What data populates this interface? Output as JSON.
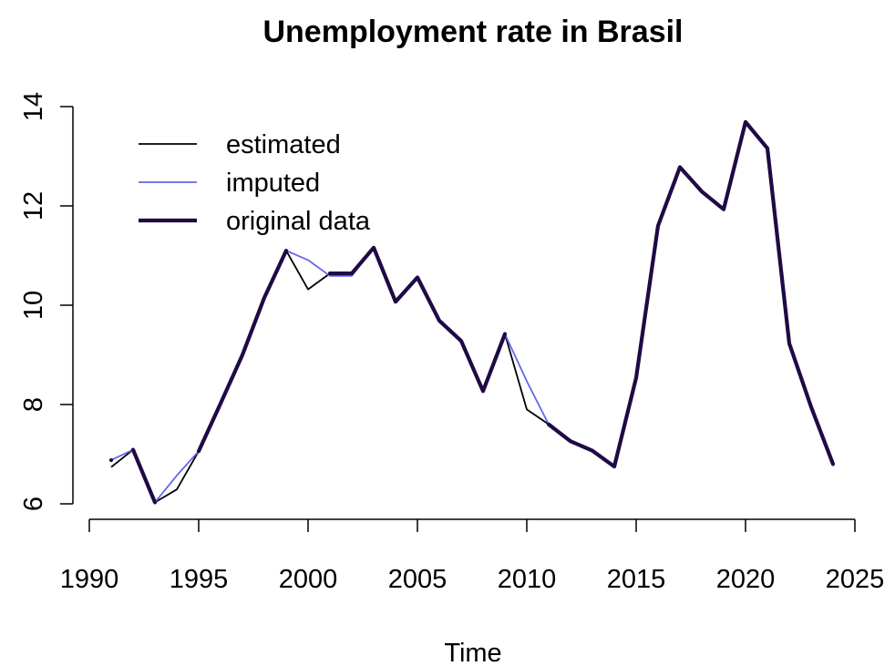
{
  "chart_data": {
    "type": "line",
    "title": "Unemployment rate in Brasil",
    "xlabel": "Time",
    "ylabel": "",
    "xlim": [
      1990,
      2025
    ],
    "ylim": [
      6,
      14
    ],
    "x_ticks": [
      1990,
      1995,
      2000,
      2005,
      2010,
      2015,
      2020,
      2025
    ],
    "y_ticks": [
      6,
      8,
      10,
      12,
      14
    ],
    "legend_position": "top-left",
    "grid": false,
    "series": [
      {
        "name": "estimated",
        "color": "#000000",
        "x": [
          1991,
          1992,
          1993,
          1994,
          1995,
          1996,
          1997,
          1998,
          1999,
          2000,
          2001,
          2002,
          2003,
          2004,
          2005,
          2006,
          2007,
          2008,
          2009,
          2010,
          2011,
          2012,
          2013,
          2014,
          2015,
          2016,
          2017,
          2018,
          2019,
          2020,
          2021,
          2022,
          2023,
          2024
        ],
        "values": [
          6.74,
          7.09,
          6.03,
          6.29,
          7.06,
          8.02,
          9.0,
          10.15,
          11.1,
          10.32,
          10.64,
          10.64,
          11.16,
          10.07,
          10.56,
          9.69,
          9.28,
          8.27,
          9.42,
          7.9,
          7.6,
          7.26,
          7.07,
          6.75,
          8.54,
          11.6,
          12.78,
          12.29,
          11.93,
          13.69,
          13.16,
          9.23,
          7.95,
          6.8
        ]
      },
      {
        "name": "imputed",
        "color": "#6666ee",
        "x": [
          1991,
          1992,
          1993,
          1994,
          1995,
          1996,
          1997,
          1998,
          1999,
          2000,
          2001,
          2002,
          2003,
          2004,
          2005,
          2006,
          2007,
          2008,
          2009,
          2010,
          2011,
          2012,
          2013,
          2014,
          2015,
          2016,
          2017,
          2018,
          2019,
          2020,
          2021,
          2022,
          2023,
          2024
        ],
        "values": [
          6.88,
          7.09,
          6.03,
          6.57,
          7.06,
          8.02,
          9.0,
          10.15,
          11.1,
          10.91,
          10.59,
          10.59,
          11.16,
          10.07,
          10.56,
          9.69,
          9.28,
          8.27,
          9.42,
          8.47,
          7.6,
          7.26,
          7.07,
          6.75,
          8.54,
          11.6,
          12.78,
          12.29,
          11.93,
          13.69,
          13.16,
          9.23,
          7.95,
          6.8
        ]
      },
      {
        "name": "original data",
        "color": "#1f0a45",
        "segments": [
          {
            "x": [
              1991
            ],
            "values": [
              6.88
            ]
          },
          {
            "x": [
              1992,
              1993
            ],
            "values": [
              7.09,
              6.03
            ]
          },
          {
            "x": [
              1995,
              1996,
              1997,
              1998,
              1999
            ],
            "values": [
              7.06,
              8.02,
              9.0,
              10.15,
              11.1
            ]
          },
          {
            "x": [
              2001,
              2002,
              2003,
              2004,
              2005,
              2006,
              2007,
              2008,
              2009
            ],
            "values": [
              10.64,
              10.64,
              11.16,
              10.07,
              10.56,
              9.69,
              9.28,
              8.27,
              9.42
            ]
          },
          {
            "x": [
              2011,
              2012,
              2013,
              2014,
              2015,
              2016,
              2017,
              2018,
              2019,
              2020,
              2021,
              2022,
              2023,
              2024
            ],
            "values": [
              7.6,
              7.26,
              7.07,
              6.75,
              8.54,
              11.6,
              12.78,
              12.29,
              11.93,
              13.69,
              13.16,
              9.23,
              7.95,
              6.8
            ]
          }
        ]
      }
    ]
  }
}
